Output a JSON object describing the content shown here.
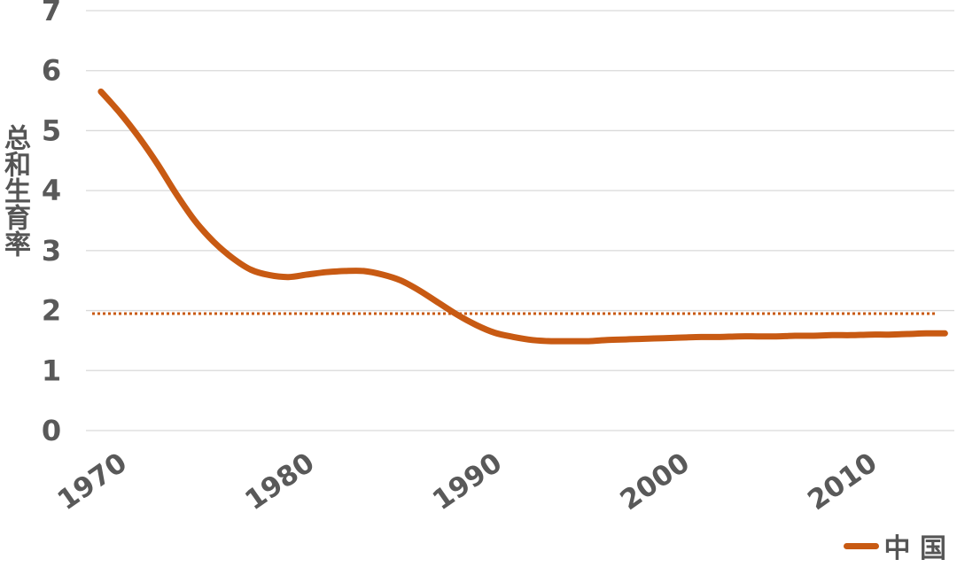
{
  "chart_data": {
    "type": "line",
    "ylabel": "总和生育率",
    "xlabel": "",
    "ylim": [
      0,
      7
    ],
    "yticks": [
      "0",
      "1",
      "2",
      "3",
      "4",
      "5",
      "6",
      "7"
    ],
    "xticks": [
      "1970",
      "1980",
      "1990",
      "2000",
      "2010"
    ],
    "xlim": [
      1969.2,
      2015.5
    ],
    "grid": true,
    "legend_position": "bottom-right",
    "reference_line": {
      "y": 1.95,
      "style": "dotted"
    },
    "series": [
      {
        "name": "中 国",
        "color": "#c85a13",
        "x": [
          1970,
          1971,
          1972,
          1973,
          1974,
          1975,
          1976,
          1977,
          1978,
          1979,
          1980,
          1981,
          1982,
          1983,
          1984,
          1985,
          1986,
          1987,
          1988,
          1989,
          1990,
          1991,
          1992,
          1993,
          1994,
          1995,
          1996,
          1997,
          1998,
          1999,
          2000,
          2001,
          2002,
          2003,
          2004,
          2005,
          2006,
          2007,
          2008,
          2009,
          2010,
          2011,
          2012,
          2013,
          2014,
          2015
        ],
        "values": [
          5.65,
          5.3,
          4.9,
          4.45,
          3.95,
          3.5,
          3.15,
          2.88,
          2.68,
          2.59,
          2.56,
          2.6,
          2.64,
          2.66,
          2.66,
          2.6,
          2.5,
          2.33,
          2.13,
          1.93,
          1.76,
          1.63,
          1.56,
          1.51,
          1.49,
          1.49,
          1.49,
          1.51,
          1.52,
          1.53,
          1.54,
          1.55,
          1.56,
          1.56,
          1.57,
          1.57,
          1.57,
          1.58,
          1.58,
          1.59,
          1.59,
          1.6,
          1.6,
          1.61,
          1.62,
          1.62
        ]
      }
    ]
  }
}
